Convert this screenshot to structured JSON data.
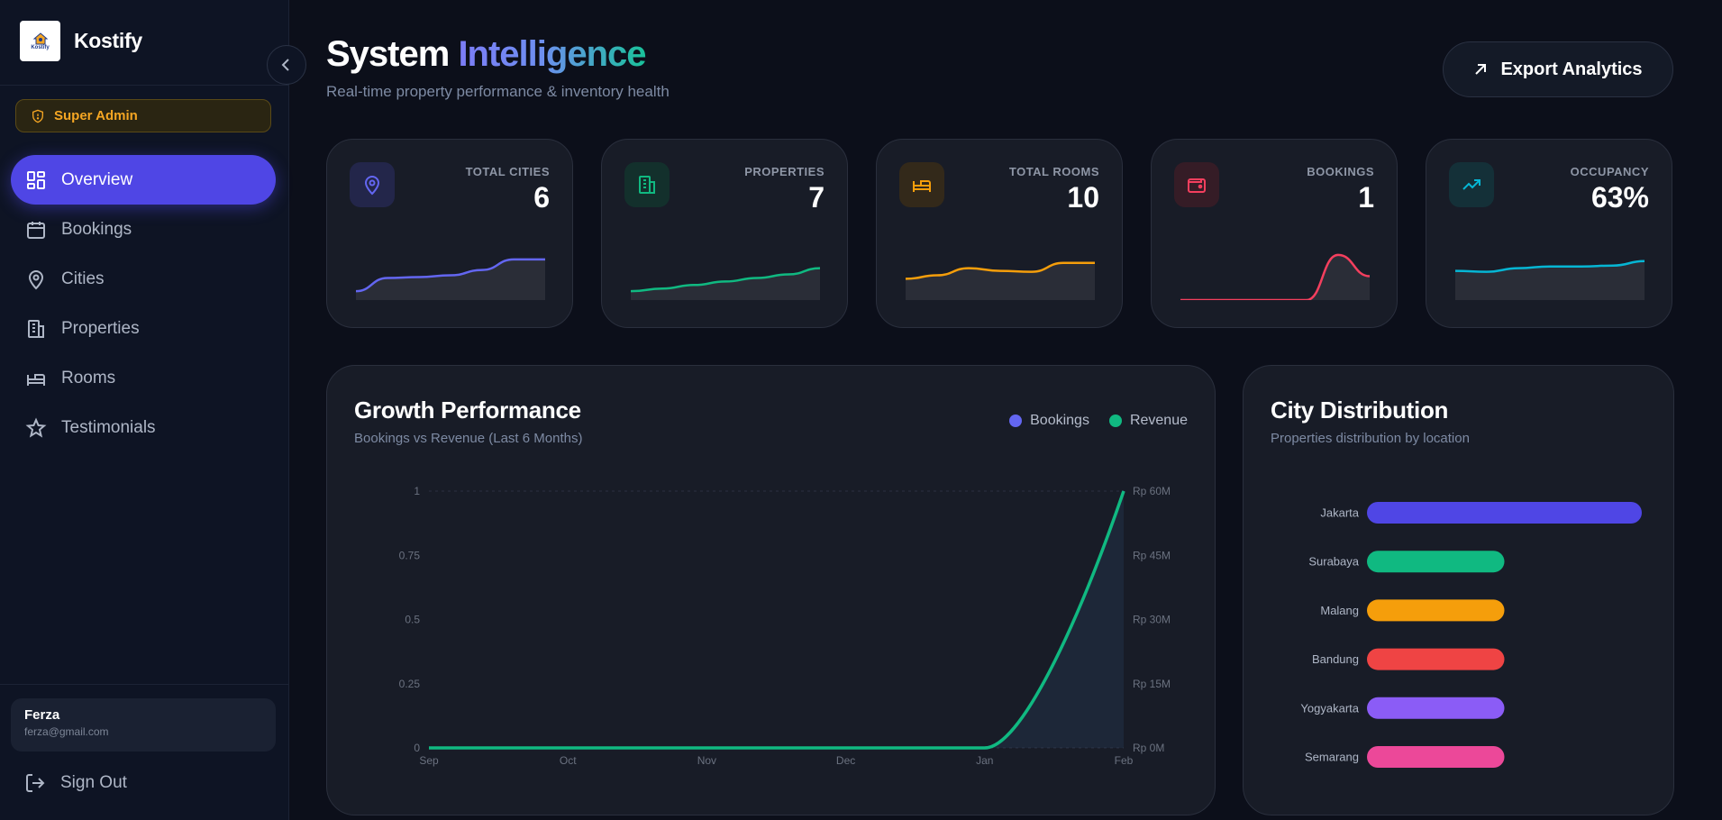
{
  "sidebar": {
    "logo_text": "Kostify",
    "brand": "Kostify",
    "role": "Super Admin",
    "items": [
      {
        "label": "Overview",
        "icon": "dashboard-icon",
        "active": true
      },
      {
        "label": "Bookings",
        "icon": "calendar-icon"
      },
      {
        "label": "Cities",
        "icon": "map-pin-icon"
      },
      {
        "label": "Properties",
        "icon": "building-icon"
      },
      {
        "label": "Rooms",
        "icon": "bed-icon"
      },
      {
        "label": "Testimonials",
        "icon": "star-icon"
      }
    ],
    "user": {
      "name": "Ferza",
      "email": "ferza@gmail.com"
    },
    "signout": "Sign Out"
  },
  "header": {
    "title_plain": "System",
    "title_gradient": "Intelligence",
    "subtitle": "Real-time property performance & inventory health",
    "export_label": "Export Analytics"
  },
  "stats": [
    {
      "label": "TOTAL CITIES",
      "value": "6",
      "icon": "map-pin-icon",
      "color": "#6366f1",
      "bg": "#23264a",
      "trend": [
        1,
        2.5,
        2.6,
        2.8,
        3.4,
        4.6,
        4.6
      ]
    },
    {
      "label": "PROPERTIES",
      "value": "7",
      "icon": "building-icon",
      "color": "#10b981",
      "bg": "#13302c",
      "trend": [
        1,
        1.3,
        1.7,
        2.1,
        2.5,
        2.9,
        3.6
      ]
    },
    {
      "label": "TOTAL ROOMS",
      "value": "10",
      "icon": "bed-icon",
      "color": "#f59e0b",
      "bg": "#33291a",
      "trend": [
        2.4,
        2.8,
        3.6,
        3.3,
        3.2,
        4.2,
        4.2
      ]
    },
    {
      "label": "BOOKINGS",
      "value": "1",
      "icon": "wallet-icon",
      "color": "#f43f5e",
      "bg": "#351c26",
      "trend": [
        0,
        0,
        0,
        0,
        0,
        5.1,
        2.7
      ]
    },
    {
      "label": "OCCUPANCY",
      "value": "63%",
      "icon": "trend-up-icon",
      "color": "#06b6d4",
      "bg": "#143038",
      "trend": [
        3.3,
        3.2,
        3.6,
        3.8,
        3.8,
        3.9,
        4.4
      ]
    }
  ],
  "growth": {
    "title": "Growth Performance",
    "subtitle": "Bookings vs Revenue (Last 6 Months)",
    "legend": [
      {
        "label": "Bookings",
        "color": "#6366f1"
      },
      {
        "label": "Revenue",
        "color": "#10b981"
      }
    ]
  },
  "city_panel": {
    "title": "City Distribution",
    "subtitle": "Properties distribution by location"
  },
  "chart_data": [
    {
      "type": "line",
      "title": "Growth Performance",
      "x": [
        "Sep",
        "Oct",
        "Nov",
        "Dec",
        "Jan",
        "Feb"
      ],
      "y_left_ticks": [
        "0",
        "0.25",
        "0.5",
        "0.75",
        "1"
      ],
      "y_right_ticks": [
        "Rp 0M",
        "Rp 15M",
        "Rp 30M",
        "Rp 45M",
        "Rp 60M"
      ],
      "ylim_left": [
        0,
        1
      ],
      "ylim_right": [
        0,
        60
      ],
      "series": [
        {
          "name": "Bookings",
          "axis": "left",
          "color": "#6366f1",
          "values": [
            0,
            0,
            0,
            0,
            0,
            1
          ]
        },
        {
          "name": "Revenue",
          "axis": "right",
          "color": "#10b981",
          "values": [
            0,
            0,
            0,
            0,
            0,
            60
          ]
        }
      ]
    },
    {
      "type": "bar",
      "title": "City Distribution",
      "orientation": "horizontal",
      "categories": [
        "Jakarta",
        "Surabaya",
        "Malang",
        "Bandung",
        "Yogyakarta",
        "Semarang"
      ],
      "values": [
        2,
        1,
        1,
        1,
        1,
        1
      ],
      "colors": [
        "#4f46e5",
        "#10b981",
        "#f59e0b",
        "#ef4444",
        "#8b5cf6",
        "#ec4899"
      ],
      "xlim": [
        0,
        2
      ]
    }
  ]
}
